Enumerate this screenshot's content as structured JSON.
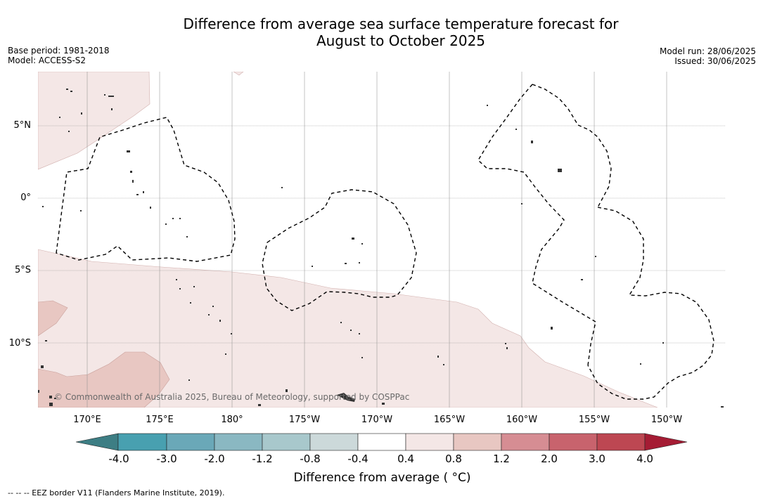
{
  "title": {
    "line1": "Difference from average sea surface temperature forecast for",
    "line2": "August to October 2025"
  },
  "meta_left": {
    "base_period": "Base period: 1981-2018",
    "model": "Model: ACCESS-S2"
  },
  "meta_right": {
    "model_run": "Model run: 28/06/2025",
    "issued": "Issued: 30/06/2025"
  },
  "map": {
    "longitude_labels": [
      "170°E",
      "175°E",
      "180°",
      "175°W",
      "170°W",
      "165°W",
      "160°W",
      "155°W",
      "150°W"
    ],
    "latitude_labels": [
      "5°N",
      "0°",
      "5°S",
      "10°S"
    ],
    "copyright": "© Commonwealth of Australia 2025, Bureau of Meteorology, supported by COSPPac",
    "colors": {
      "slight_warm": "#f4e7e6",
      "warm": "#e8c7c2",
      "land": "#333333",
      "grid": "#888888",
      "eez": "#000000"
    }
  },
  "colorbar": {
    "label": "Difference from average ( °C)",
    "ticks": [
      "-4.0",
      "-3.0",
      "-2.0",
      "-1.2",
      "-0.8",
      "-0.4",
      "0.4",
      "0.8",
      "1.2",
      "2.0",
      "3.0",
      "4.0"
    ],
    "colors": [
      "#3d7e84",
      "#48a0b0",
      "#6aa8b8",
      "#8ab8c2",
      "#a8c8cc",
      "#ccd9da",
      "#ffffff",
      "#f4e7e6",
      "#e8c7c2",
      "#d68d93",
      "#c8636d",
      "#bd4752",
      "#a51c34"
    ]
  },
  "eez_note": "-- -- -- EEZ border V11 (Flanders Marine Institute, 2019)."
}
